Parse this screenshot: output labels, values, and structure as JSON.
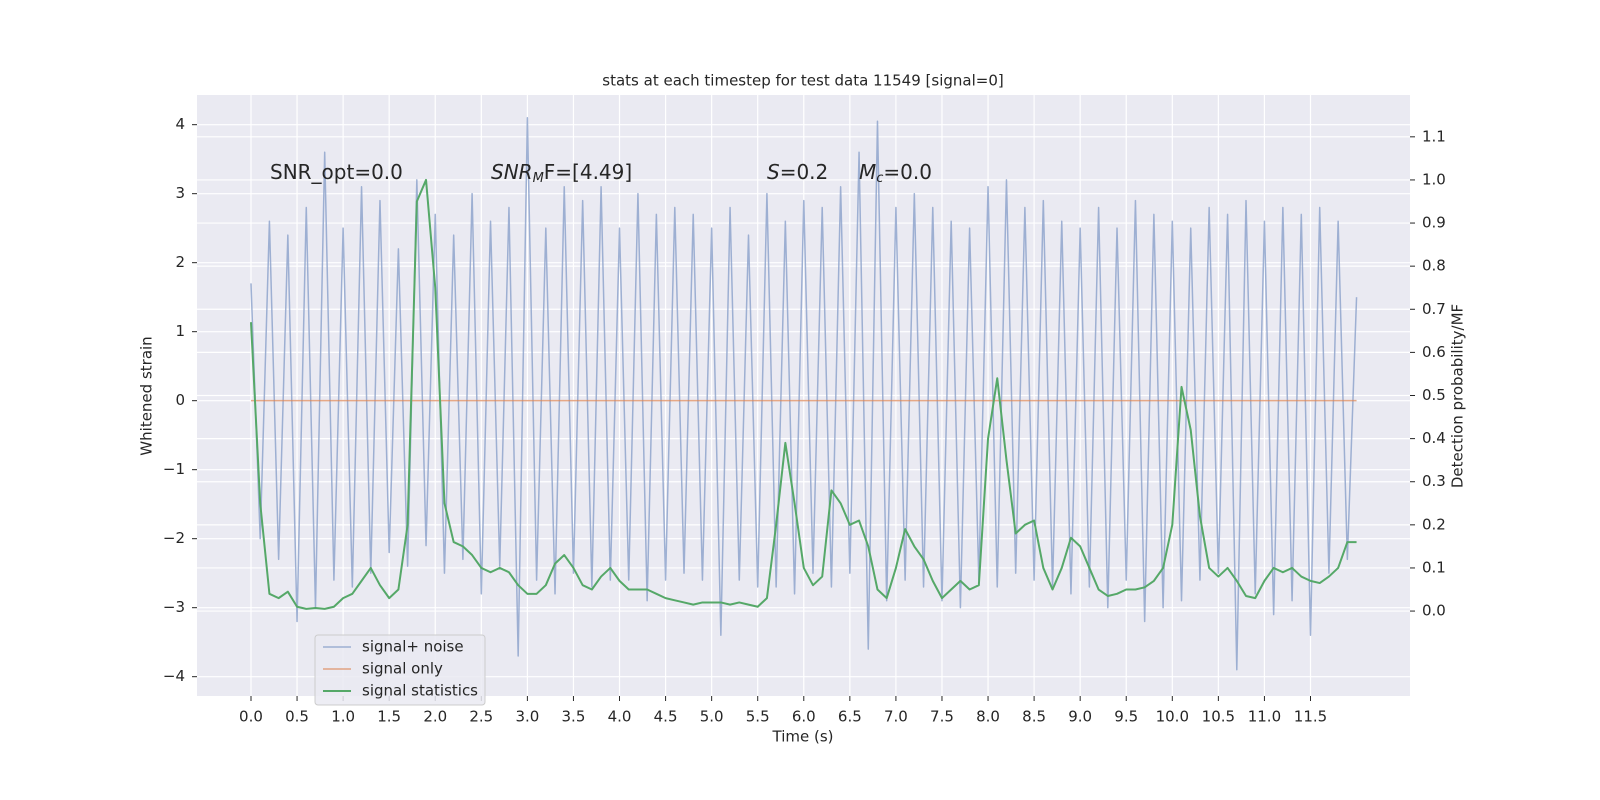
{
  "chart_data": {
    "type": "line",
    "title": "stats at each timestep for test data 11549 [signal=0]",
    "xlabel": "Time (s)",
    "ylabel": "Whitened strain",
    "y2label": "Detection probability/MF",
    "annotations": [
      [
        "SNR_opt=0.0"
      ],
      [
        "SNR",
        "M",
        "F=[4.49]"
      ],
      [
        "S",
        "=0.2"
      ],
      [
        "M",
        "c",
        "=0.0"
      ]
    ],
    "x": [
      0,
      0.1,
      0.2,
      0.3,
      0.4,
      0.5,
      0.6,
      0.7,
      0.8,
      0.9,
      1,
      1.1,
      1.2,
      1.3,
      1.4,
      1.5,
      1.6,
      1.7,
      1.8,
      1.9,
      2,
      2.1,
      2.2,
      2.3,
      2.4,
      2.5,
      2.6,
      2.7,
      2.8,
      2.9,
      3,
      3.1,
      3.2,
      3.3,
      3.4,
      3.5,
      3.6,
      3.7,
      3.8,
      3.9,
      4,
      4.1,
      4.2,
      4.3,
      4.4,
      4.5,
      4.6,
      4.7,
      4.8,
      4.9,
      5,
      5.1,
      5.2,
      5.3,
      5.4,
      5.5,
      5.6,
      5.7,
      5.8,
      5.9,
      6,
      6.1,
      6.2,
      6.3,
      6.4,
      6.5,
      6.6,
      6.7,
      6.8,
      6.9,
      7,
      7.1,
      7.2,
      7.3,
      7.4,
      7.5,
      7.6,
      7.7,
      7.8,
      7.9,
      8,
      8.1,
      8.2,
      8.3,
      8.4,
      8.5,
      8.6,
      8.7,
      8.8,
      8.9,
      9,
      9.1,
      9.2,
      9.3,
      9.4,
      9.5,
      9.6,
      9.7,
      9.8,
      9.9,
      10,
      10.1,
      10.2,
      10.3,
      10.4,
      10.5,
      10.6,
      10.7,
      10.8,
      10.9,
      11,
      11.1,
      11.2,
      11.3,
      11.4,
      11.5,
      11.6,
      11.7,
      11.8,
      11.9,
      12
    ],
    "series": [
      {
        "name": "signal+ noise",
        "color": "#8fa4cc",
        "values": [
          1.7,
          -2.0,
          2.6,
          -2.3,
          2.4,
          -3.2,
          2.8,
          -3.0,
          3.6,
          -2.6,
          2.5,
          -2.7,
          3.1,
          -2.5,
          2.9,
          -2.2,
          2.2,
          -2.4,
          3.2,
          -2.1,
          2.7,
          -2.5,
          2.4,
          -2.3,
          3.0,
          -2.8,
          2.6,
          -2.4,
          2.8,
          -3.7,
          4.1,
          -2.6,
          2.5,
          -2.8,
          3.1,
          -2.5,
          2.9,
          -2.7,
          3.1,
          -2.6,
          2.5,
          -2.6,
          3.0,
          -2.9,
          2.7,
          -2.6,
          2.8,
          -2.5,
          2.7,
          -2.6,
          2.5,
          -3.4,
          2.8,
          -2.6,
          2.4,
          -2.7,
          3.0,
          -2.7,
          2.6,
          -2.8,
          2.9,
          -2.5,
          2.8,
          -2.7,
          3.1,
          -2.5,
          3.6,
          -3.6,
          4.05,
          -2.9,
          2.8,
          -2.6,
          3.0,
          -2.7,
          2.8,
          -2.9,
          2.6,
          -3.0,
          2.5,
          -2.6,
          3.1,
          -2.7,
          3.2,
          -2.5,
          2.8,
          -2.6,
          2.9,
          -2.7,
          2.6,
          -2.8,
          2.5,
          -2.7,
          2.8,
          -3.0,
          2.5,
          -2.6,
          2.9,
          -3.2,
          2.7,
          -3.0,
          2.6,
          -2.9,
          2.5,
          -2.6,
          2.8,
          -2.5,
          2.7,
          -3.9,
          2.9,
          -2.8,
          2.6,
          -3.1,
          2.8,
          -2.9,
          2.7,
          -3.4,
          2.8,
          -2.5,
          2.6,
          -2.3,
          1.5
        ]
      },
      {
        "name": "signal only",
        "color": "#dd8452",
        "values": [
          0,
          0,
          0,
          0,
          0,
          0,
          0,
          0,
          0,
          0,
          0,
          0,
          0,
          0,
          0,
          0,
          0,
          0,
          0,
          0,
          0,
          0,
          0,
          0,
          0,
          0,
          0,
          0,
          0,
          0,
          0,
          0,
          0,
          0,
          0,
          0,
          0,
          0,
          0,
          0,
          0,
          0,
          0,
          0,
          0,
          0,
          0,
          0,
          0,
          0,
          0,
          0,
          0,
          0,
          0,
          0,
          0,
          0,
          0,
          0,
          0,
          0,
          0,
          0,
          0,
          0,
          0,
          0,
          0,
          0,
          0,
          0,
          0,
          0,
          0,
          0,
          0,
          0,
          0,
          0,
          0,
          0,
          0,
          0,
          0,
          0,
          0,
          0,
          0,
          0,
          0,
          0,
          0,
          0,
          0,
          0,
          0,
          0,
          0,
          0,
          0,
          0,
          0,
          0,
          0,
          0,
          0,
          0,
          0,
          0,
          0,
          0,
          0,
          0,
          0,
          0,
          0,
          0,
          0,
          0,
          0
        ]
      },
      {
        "name": "signal statistics",
        "color": "#55a868",
        "axis": "y2",
        "values": [
          0.67,
          0.25,
          0.04,
          0.03,
          0.045,
          0.01,
          0.005,
          0.007,
          0.005,
          0.01,
          0.03,
          0.04,
          0.07,
          0.1,
          0.06,
          0.03,
          0.05,
          0.2,
          0.95,
          1.0,
          0.75,
          0.25,
          0.16,
          0.15,
          0.13,
          0.1,
          0.09,
          0.1,
          0.09,
          0.06,
          0.04,
          0.04,
          0.06,
          0.11,
          0.13,
          0.1,
          0.06,
          0.05,
          0.08,
          0.1,
          0.07,
          0.05,
          0.05,
          0.05,
          0.04,
          0.03,
          0.025,
          0.02,
          0.015,
          0.02,
          0.02,
          0.02,
          0.015,
          0.02,
          0.015,
          0.01,
          0.03,
          0.2,
          0.39,
          0.25,
          0.1,
          0.06,
          0.08,
          0.28,
          0.25,
          0.2,
          0.21,
          0.15,
          0.05,
          0.03,
          0.1,
          0.19,
          0.15,
          0.12,
          0.07,
          0.03,
          0.05,
          0.07,
          0.05,
          0.06,
          0.4,
          0.54,
          0.35,
          0.18,
          0.2,
          0.21,
          0.1,
          0.05,
          0.1,
          0.17,
          0.15,
          0.1,
          0.05,
          0.035,
          0.04,
          0.05,
          0.05,
          0.055,
          0.07,
          0.1,
          0.2,
          0.52,
          0.42,
          0.22,
          0.1,
          0.08,
          0.1,
          0.07,
          0.035,
          0.03,
          0.07,
          0.1,
          0.09,
          0.1,
          0.08,
          0.07,
          0.065,
          0.08,
          0.1,
          0.16,
          0.16
        ]
      }
    ],
    "xlim": [
      -0.586,
      12.58
    ],
    "ylim": [
      -4.28,
      4.43
    ],
    "y2lim": [
      -0.197,
      1.197
    ],
    "xticks": [
      {
        "value": 0,
        "label": "0.0"
      },
      0.5,
      {
        "value": 1,
        "label": "1.0"
      },
      1.5,
      {
        "value": 2,
        "label": "2.0"
      },
      2.5,
      {
        "value": 3,
        "label": "3.0"
      },
      3.5,
      {
        "value": 4,
        "label": "4.0"
      },
      4.5,
      {
        "value": 5,
        "label": "5.0"
      },
      5.5,
      {
        "value": 6,
        "label": "6.0"
      },
      6.5,
      {
        "value": 7,
        "label": "7.0"
      },
      7.5,
      {
        "value": 8,
        "label": "8.0"
      },
      8.5,
      {
        "value": 9,
        "label": "9.0"
      },
      9.5,
      {
        "value": 10,
        "label": "10.0"
      },
      10.5,
      {
        "value": 11,
        "label": "11.0"
      },
      11.5
    ],
    "yticks": [
      {
        "value": -4,
        "label": "−4"
      },
      {
        "value": -3,
        "label": "−3"
      },
      {
        "value": -2,
        "label": "−2"
      },
      {
        "value": -1,
        "label": "−1"
      },
      0,
      1,
      2,
      3,
      4
    ],
    "y2ticks": [
      {
        "value": 0,
        "label": "0.0"
      },
      0.1,
      0.2,
      0.3,
      0.4,
      0.5,
      0.6,
      0.7,
      0.8,
      0.9,
      {
        "value": 1,
        "label": "1.0"
      },
      1.1
    ],
    "grid": true,
    "legend": "lower left",
    "background": "#eaeaf2"
  }
}
